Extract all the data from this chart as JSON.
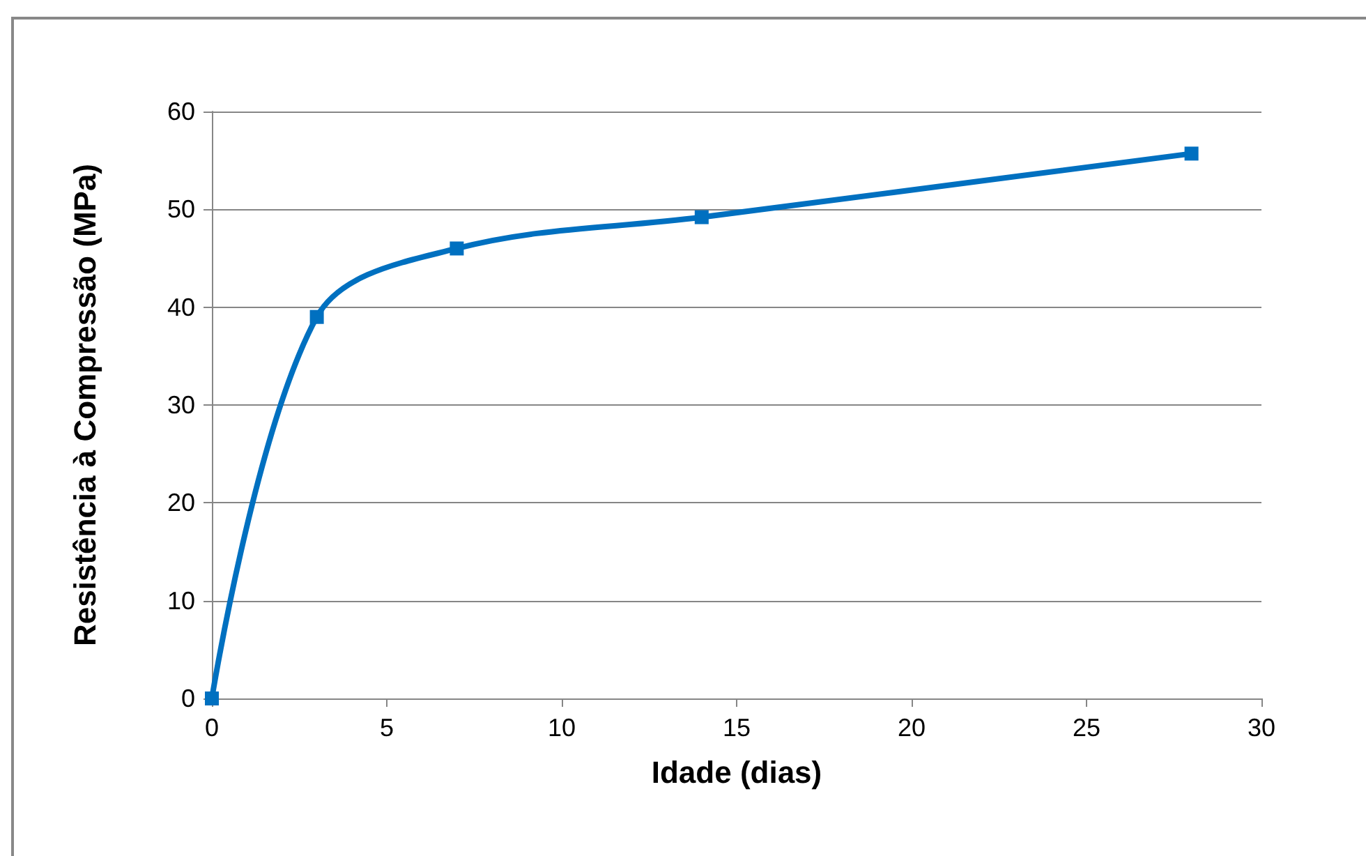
{
  "chart_data": {
    "type": "line",
    "xlabel": "Idade (dias)",
    "ylabel": "Resistência à Compressão (MPa)",
    "x": [
      0,
      3,
      7,
      14,
      28
    ],
    "series": [
      {
        "color": "#0070c0",
        "values": [
          0,
          39,
          46,
          49.2,
          55.7
        ]
      }
    ],
    "xlim": [
      0,
      30
    ],
    "xticks": [
      0,
      5,
      10,
      15,
      20,
      25,
      30
    ],
    "ylim": [
      0,
      60
    ],
    "yticks": [
      0,
      10,
      20,
      30,
      40,
      50,
      60
    ],
    "grid": "y",
    "marker": "square",
    "line_style": "solid"
  }
}
